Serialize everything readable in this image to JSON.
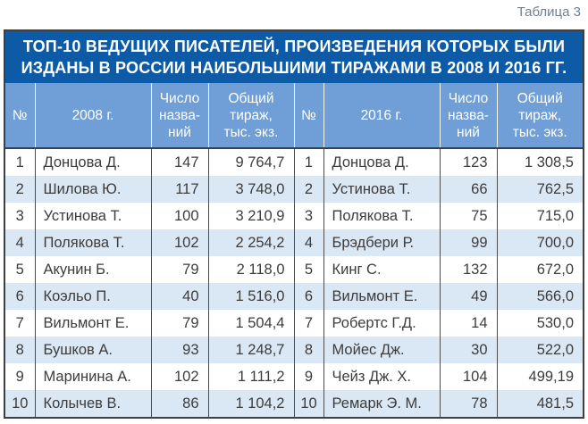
{
  "caption": "Таблица 3",
  "table": {
    "title": "ТОП-10 ВЕДУЩИХ ПИСАТЕЛЕЙ, ПРОИЗВЕДЕНИЯ КОТОРЫХ БЫЛИ\nИЗДАНЫ В РОССИИ НАИБОЛЬШИМИ ТИРАЖАМИ В 2008 И 2016 ГГ.",
    "columns": {
      "num": "№",
      "year_2008": "2008 г.",
      "year_2016": "2016 г.",
      "titles_count": "Число\nназва-\nний",
      "total_print_run": "Общий\nтираж,\nтыс. экз."
    },
    "left": {
      "year": "2008 г.",
      "rows": [
        {
          "n": "1",
          "author": "Донцова Д.",
          "titles": "147",
          "copies": "9 764,7"
        },
        {
          "n": "2",
          "author": "Шилова Ю.",
          "titles": "117",
          "copies": "3 748,0"
        },
        {
          "n": "3",
          "author": "Устинова Т.",
          "titles": "100",
          "copies": "3 210,9"
        },
        {
          "n": "4",
          "author": "Полякова Т.",
          "titles": "102",
          "copies": "2 254,2"
        },
        {
          "n": "5",
          "author": "Акунин Б.",
          "titles": "79",
          "copies": "2 118,0"
        },
        {
          "n": "6",
          "author": "Коэльо П.",
          "titles": "40",
          "copies": "1 516,0"
        },
        {
          "n": "7",
          "author": "Вильмонт Е.",
          "titles": "79",
          "copies": "1 504,4"
        },
        {
          "n": "8",
          "author": "Бушков А.",
          "titles": "93",
          "copies": "1 248,7"
        },
        {
          "n": "9",
          "author": "Маринина А.",
          "titles": "102",
          "copies": "1 111,2"
        },
        {
          "n": "10",
          "author": "Колычев В.",
          "titles": "86",
          "copies": "1 104,2"
        }
      ]
    },
    "right": {
      "year": "2016 г.",
      "rows": [
        {
          "n": "1",
          "author": "Донцова Д.",
          "titles": "123",
          "copies": "1 308,5"
        },
        {
          "n": "2",
          "author": "Устинова Т.",
          "titles": "66",
          "copies": "762,5"
        },
        {
          "n": "3",
          "author": "Полякова Т.",
          "titles": "75",
          "copies": "715,0"
        },
        {
          "n": "4",
          "author": "Брэдбери Р.",
          "titles": "99",
          "copies": "700,0"
        },
        {
          "n": "5",
          "author": "Кинг С.",
          "titles": "132",
          "copies": "672,0"
        },
        {
          "n": "6",
          "author": "Вильмонт Е.",
          "titles": "49",
          "copies": "566,0"
        },
        {
          "n": "7",
          "author": "Робертс Г.Д.",
          "titles": "14",
          "copies": "530,0"
        },
        {
          "n": "8",
          "author": "Мойес Дж.",
          "titles": "30",
          "copies": "522,0"
        },
        {
          "n": "9",
          "author": "Чейз Дж. Х.",
          "titles": "104",
          "copies": "499,19"
        },
        {
          "n": "10",
          "author": "Ремарк Э. М.",
          "titles": "78",
          "copies": "481,5"
        }
      ]
    }
  },
  "colors": {
    "title_band": "#0d5ba7",
    "header_band": "#6f9fd6",
    "row_stripe": "#dae7f4",
    "border_dark": "#3f3f3f",
    "body_text": "#3c3c3c",
    "caption_text": "#6f7f92"
  },
  "chart_data": {
    "type": "table",
    "title": "ТОП-10 ВЕДУЩИХ ПИСАТЕЛЕЙ, ПРОИЗВЕДЕНИЯ КОТОРЫХ БЫЛИ ИЗДАНЫ В РОССИИ НАИБОЛЬШИМИ ТИРАЖАМИ В 2008 И 2016 ГГ.",
    "columns": [
      "№",
      "2008 г.",
      "Число названий",
      "Общий тираж, тыс. экз.",
      "№",
      "2016 г.",
      "Число названий",
      "Общий тираж, тыс. экз."
    ],
    "rows": [
      [
        1,
        "Донцова Д.",
        147,
        9764.7,
        1,
        "Донцова Д.",
        123,
        1308.5
      ],
      [
        2,
        "Шилова Ю.",
        117,
        3748.0,
        2,
        "Устинова Т.",
        66,
        762.5
      ],
      [
        3,
        "Устинова Т.",
        100,
        3210.9,
        3,
        "Полякова Т.",
        75,
        715.0
      ],
      [
        4,
        "Полякова Т.",
        102,
        2254.2,
        4,
        "Брэдбери Р.",
        99,
        700.0
      ],
      [
        5,
        "Акунин Б.",
        79,
        2118.0,
        5,
        "Кинг С.",
        132,
        672.0
      ],
      [
        6,
        "Коэльо П.",
        40,
        1516.0,
        6,
        "Вильмонт Е.",
        49,
        566.0
      ],
      [
        7,
        "Вильмонт Е.",
        79,
        1504.4,
        7,
        "Робертс Г.Д.",
        14,
        530.0
      ],
      [
        8,
        "Бушков А.",
        93,
        1248.7,
        8,
        "Мойес Дж.",
        30,
        522.0
      ],
      [
        9,
        "Маринина А.",
        102,
        1111.2,
        9,
        "Чейз Дж. Х.",
        104,
        499.19
      ],
      [
        10,
        "Колычев В.",
        86,
        1104.2,
        10,
        "Ремарк Э. М.",
        78,
        481.5
      ]
    ]
  }
}
